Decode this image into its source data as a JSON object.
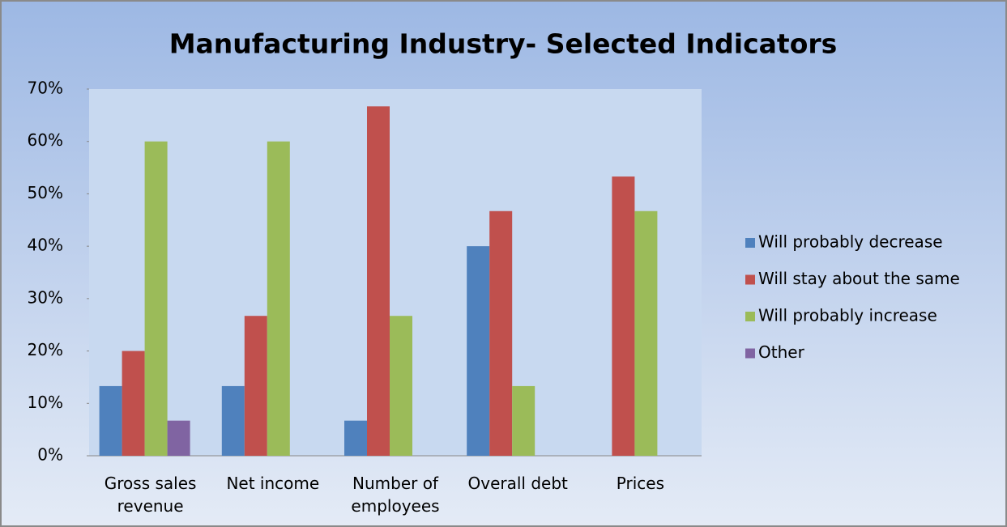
{
  "chart_data": {
    "type": "bar",
    "title": "Manufacturing Industry- Selected Indicators",
    "categories": [
      "Gross sales revenue",
      "Net income",
      "Number of employees",
      "Overall debt",
      "Prices"
    ],
    "series": [
      {
        "name": "Will probably decrease",
        "color": "#4f81bd",
        "values": [
          13.3,
          13.3,
          6.7,
          40,
          0
        ]
      },
      {
        "name": "Will stay about the same",
        "color": "#c0504d",
        "values": [
          20,
          26.7,
          66.7,
          46.7,
          53.3
        ]
      },
      {
        "name": "Will probably increase",
        "color": "#9bbb59",
        "values": [
          60,
          60,
          26.7,
          13.3,
          46.7
        ]
      },
      {
        "name": "Other",
        "color": "#8064a2",
        "values": [
          6.7,
          0,
          0,
          0,
          0
        ]
      }
    ],
    "ylim": [
      0,
      70
    ],
    "yticks": [
      {
        "value": 0,
        "label": "0%"
      },
      {
        "value": 10,
        "label": "10%"
      },
      {
        "value": 20,
        "label": "20%"
      },
      {
        "value": 30,
        "label": "30%"
      },
      {
        "value": 40,
        "label": "40%"
      },
      {
        "value": 50,
        "label": "50%"
      },
      {
        "value": 60,
        "label": "60%"
      },
      {
        "value": 70,
        "label": "70%"
      }
    ],
    "legend": "right"
  }
}
